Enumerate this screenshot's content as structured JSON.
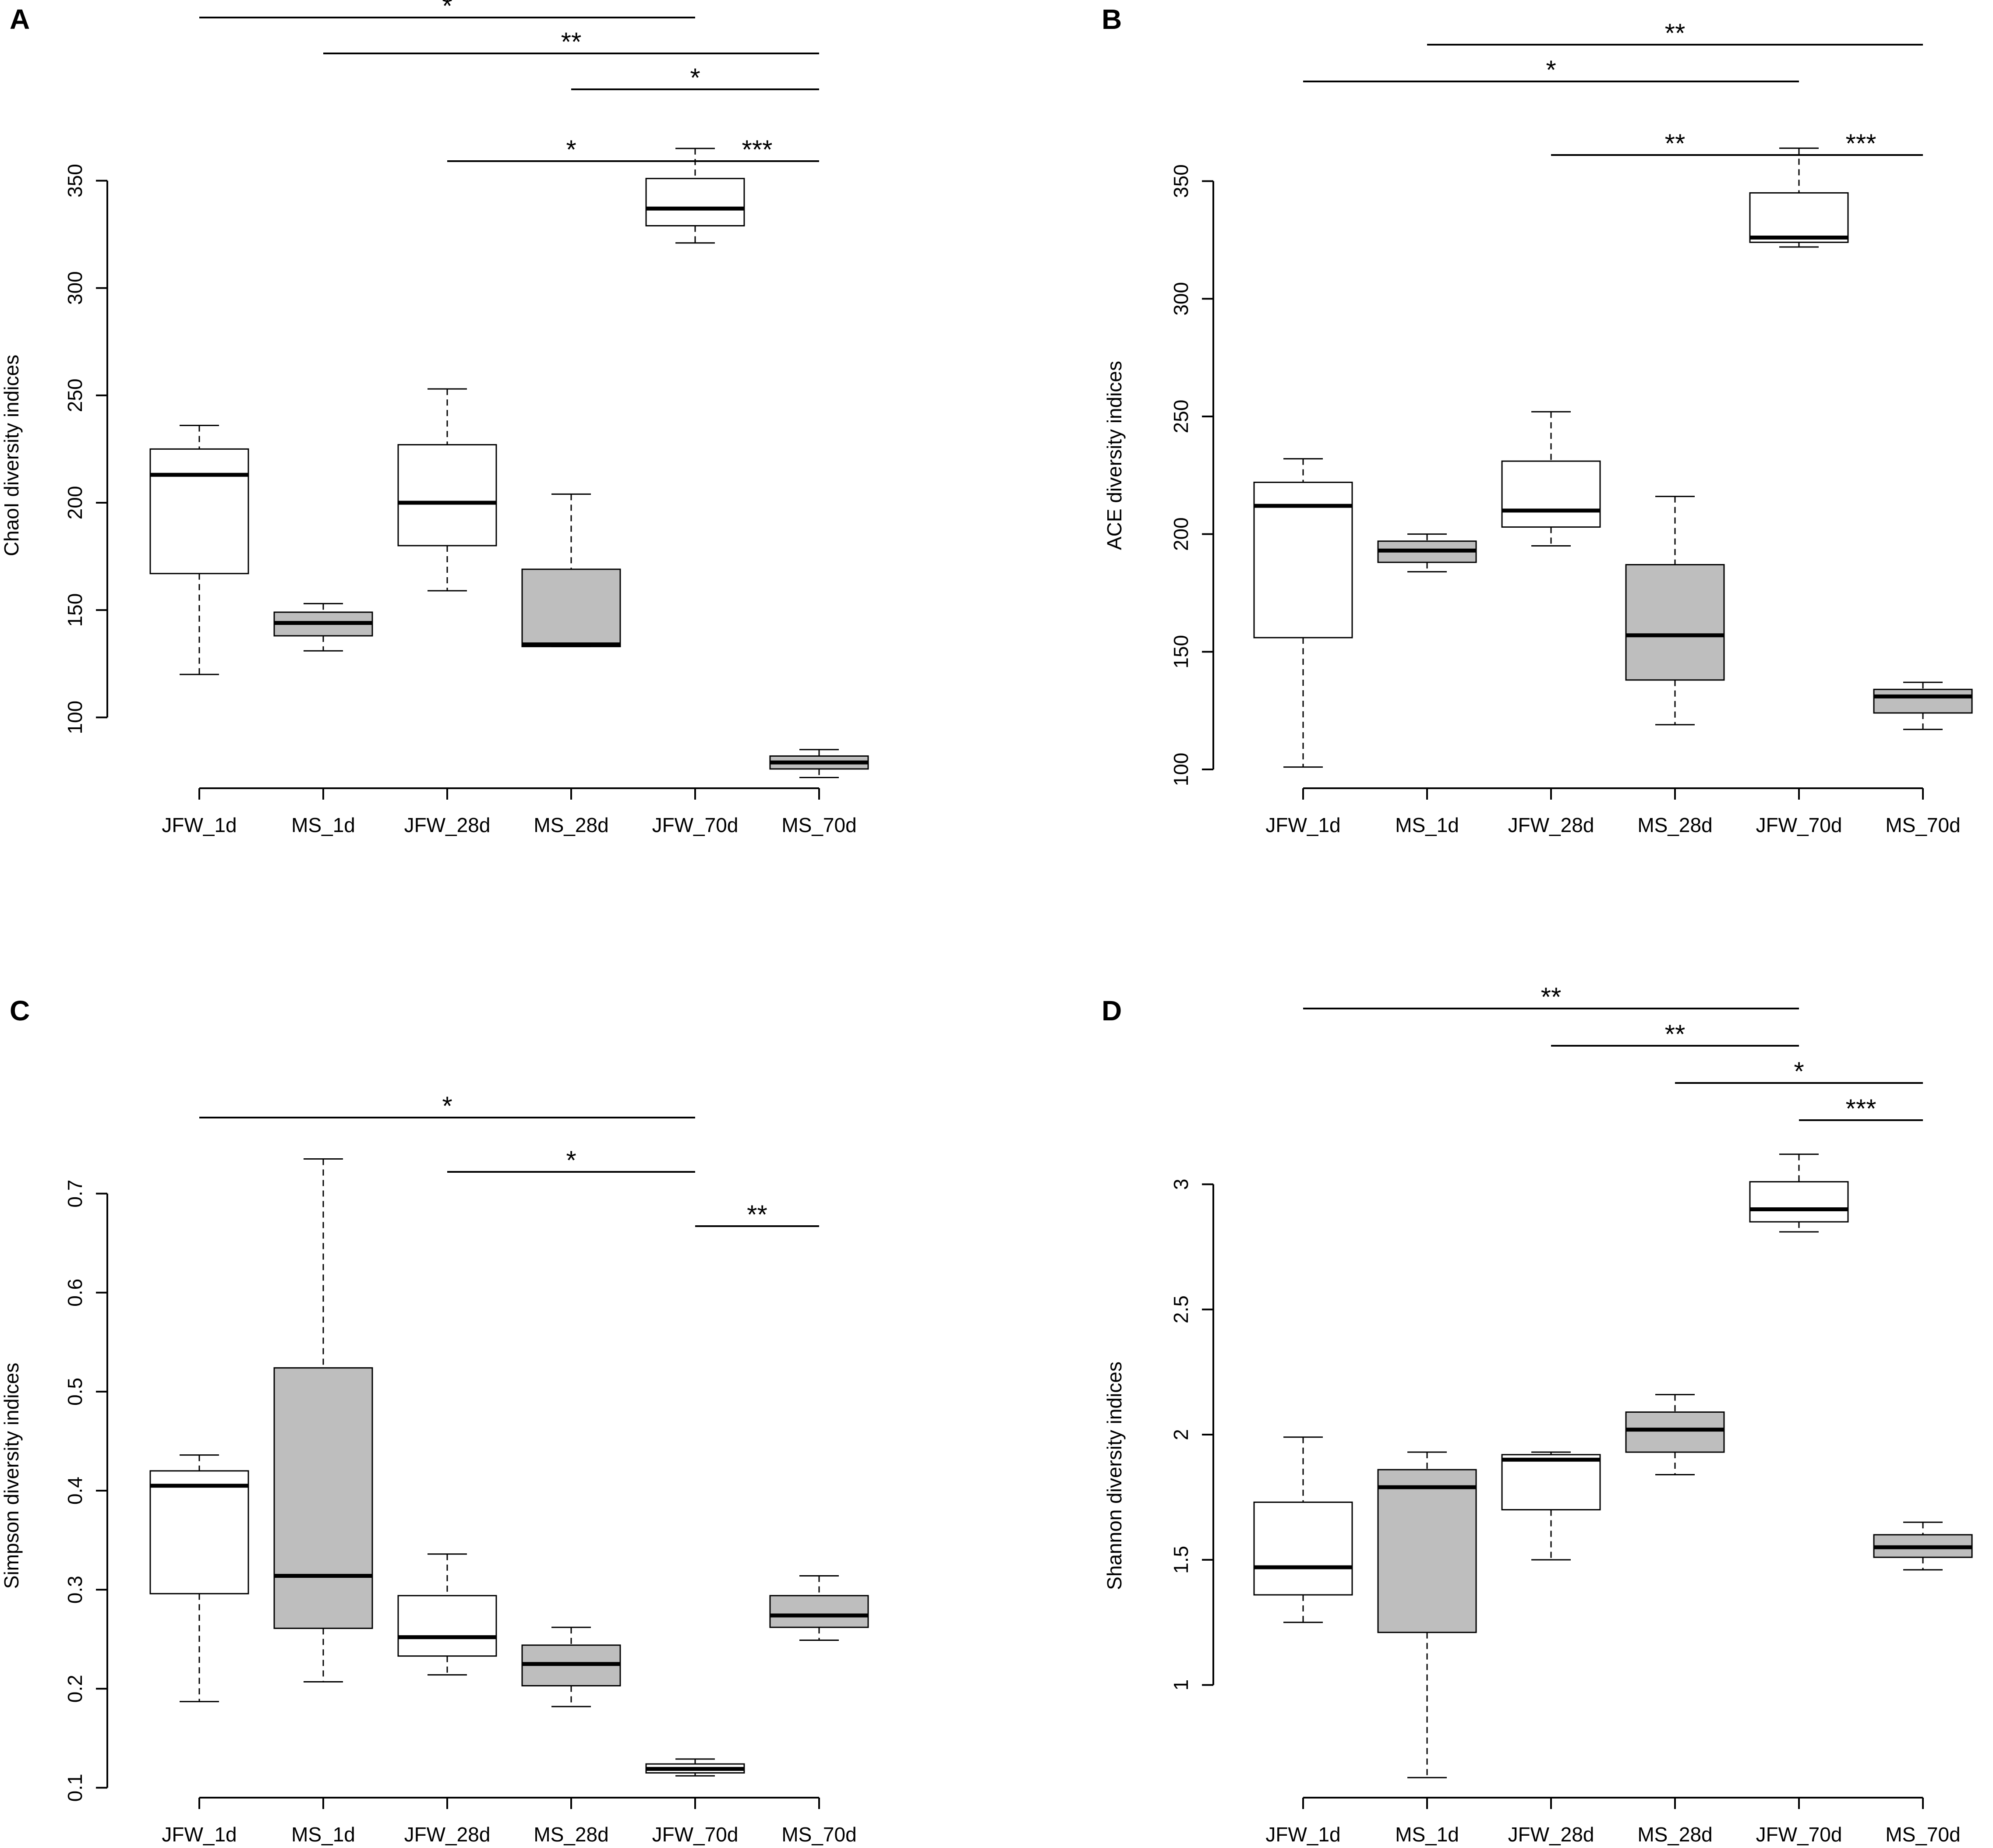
{
  "chart_data": [
    {
      "panel": "A",
      "type": "box",
      "ylabel": "ChaoI diversity indices",
      "ylim": [
        67,
        375
      ],
      "yticks": [
        100,
        150,
        200,
        250,
        300,
        350
      ],
      "categories": [
        "JFW_1d",
        "MS_1d",
        "JFW_28d",
        "MS_28d",
        "JFW_70d",
        "MS_70d"
      ],
      "fills": [
        "#ffffff",
        "#bebebe",
        "#ffffff",
        "#bebebe",
        "#ffffff",
        "#bebebe"
      ],
      "boxes": [
        {
          "min": 120,
          "q1": 167,
          "median": 213,
          "q3": 225,
          "max": 236
        },
        {
          "min": 131,
          "q1": 138,
          "median": 144,
          "q3": 149,
          "max": 153
        },
        {
          "min": 159,
          "q1": 180,
          "median": 200,
          "q3": 227,
          "max": 253
        },
        {
          "min": 133,
          "q1": 133,
          "median": 134,
          "q3": 169,
          "max": 204
        },
        {
          "min": 321,
          "q1": 329,
          "median": 337,
          "q3": 351,
          "max": 365
        },
        {
          "min": 72,
          "q1": 76,
          "median": 79,
          "q3": 82,
          "max": 85
        }
      ],
      "significance": [
        {
          "from": 0,
          "to": 4,
          "label": "*",
          "level": 5
        },
        {
          "from": 1,
          "to": 5,
          "label": "**",
          "level": 4
        },
        {
          "from": 3,
          "to": 5,
          "label": "*",
          "level": 3
        },
        {
          "from": 2,
          "to": 4,
          "label": "*",
          "level": 1
        },
        {
          "from": 4,
          "to": 5,
          "label": "***",
          "level": 1
        }
      ]
    },
    {
      "panel": "B",
      "type": "box",
      "ylabel": "ACE diversity indices",
      "ylim": [
        92,
        373
      ],
      "yticks": [
        100,
        150,
        200,
        250,
        300,
        350
      ],
      "categories": [
        "JFW_1d",
        "MS_1d",
        "JFW_28d",
        "MS_28d",
        "JFW_70d",
        "MS_70d"
      ],
      "fills": [
        "#ffffff",
        "#bebebe",
        "#ffffff",
        "#bebebe",
        "#ffffff",
        "#bebebe"
      ],
      "boxes": [
        {
          "min": 101,
          "q1": 156,
          "median": 212,
          "q3": 222,
          "max": 232
        },
        {
          "min": 184,
          "q1": 188,
          "median": 193,
          "q3": 197,
          "max": 200
        },
        {
          "min": 195,
          "q1": 203,
          "median": 210,
          "q3": 231,
          "max": 252
        },
        {
          "min": 119,
          "q1": 138,
          "median": 157,
          "q3": 187,
          "max": 216
        },
        {
          "min": 322,
          "q1": 324,
          "median": 326,
          "q3": 345,
          "max": 364
        },
        {
          "min": 117,
          "q1": 124,
          "median": 131,
          "q3": 134,
          "max": 137
        }
      ],
      "significance": [
        {
          "from": 1,
          "to": 5,
          "label": "**",
          "level": 4
        },
        {
          "from": 0,
          "to": 4,
          "label": "*",
          "level": 3
        },
        {
          "from": 2,
          "to": 4,
          "label": "**",
          "level": 1
        },
        {
          "from": 4,
          "to": 5,
          "label": "***",
          "level": 1
        }
      ]
    },
    {
      "panel": "C",
      "type": "box",
      "ylabel": "Simpson diversity indices",
      "ylim": [
        0.09,
        0.76
      ],
      "yticks": [
        0.1,
        0.2,
        0.3,
        0.4,
        0.5,
        0.6,
        0.7
      ],
      "categories": [
        "JFW_1d",
        "MS_1d",
        "JFW_28d",
        "MS_28d",
        "JFW_70d",
        "MS_70d"
      ],
      "fills": [
        "#ffffff",
        "#bebebe",
        "#ffffff",
        "#bebebe",
        "#ffffff",
        "#bebebe"
      ],
      "boxes": [
        {
          "min": 0.187,
          "q1": 0.296,
          "median": 0.405,
          "q3": 0.42,
          "max": 0.436
        },
        {
          "min": 0.207,
          "q1": 0.261,
          "median": 0.314,
          "q3": 0.524,
          "max": 0.735
        },
        {
          "min": 0.214,
          "q1": 0.233,
          "median": 0.252,
          "q3": 0.294,
          "max": 0.336
        },
        {
          "min": 0.182,
          "q1": 0.203,
          "median": 0.225,
          "q3": 0.244,
          "max": 0.262
        },
        {
          "min": 0.112,
          "q1": 0.115,
          "median": 0.119,
          "q3": 0.124,
          "max": 0.129
        },
        {
          "min": 0.249,
          "q1": 0.262,
          "median": 0.274,
          "q3": 0.294,
          "max": 0.314
        }
      ],
      "significance": [
        {
          "from": 0,
          "to": 4,
          "label": "*",
          "level": 3
        },
        {
          "from": 2,
          "to": 4,
          "label": "*",
          "level": 2
        },
        {
          "from": 4,
          "to": 5,
          "label": "**",
          "level": 1
        }
      ]
    },
    {
      "panel": "D",
      "type": "box",
      "ylabel": "Shannon diversity indices",
      "ylim": [
        0.55,
        3.2
      ],
      "yticks": [
        1.0,
        1.5,
        2.0,
        2.5,
        3.0
      ],
      "categories": [
        "JFW_1d",
        "MS_1d",
        "JFW_28d",
        "MS_28d",
        "JFW_70d",
        "MS_70d"
      ],
      "fills": [
        "#ffffff",
        "#bebebe",
        "#ffffff",
        "#bebebe",
        "#ffffff",
        "#bebebe"
      ],
      "boxes": [
        {
          "min": 1.25,
          "q1": 1.36,
          "median": 1.47,
          "q3": 1.73,
          "max": 1.99
        },
        {
          "min": 0.63,
          "q1": 1.21,
          "median": 1.79,
          "q3": 1.86,
          "max": 1.93
        },
        {
          "min": 1.5,
          "q1": 1.7,
          "median": 1.9,
          "q3": 1.92,
          "max": 1.93
        },
        {
          "min": 1.84,
          "q1": 1.93,
          "median": 2.02,
          "q3": 2.09,
          "max": 2.16
        },
        {
          "min": 2.81,
          "q1": 2.85,
          "median": 2.9,
          "q3": 3.01,
          "max": 3.12
        },
        {
          "min": 1.46,
          "q1": 1.51,
          "median": 1.55,
          "q3": 1.6,
          "max": 1.65
        }
      ],
      "significance": [
        {
          "from": 0,
          "to": 4,
          "label": "**",
          "level": 4
        },
        {
          "from": 2,
          "to": 4,
          "label": "**",
          "level": 3
        },
        {
          "from": 3,
          "to": 5,
          "label": "*",
          "level": 2
        },
        {
          "from": 4,
          "to": 5,
          "label": "***",
          "level": 1
        }
      ]
    }
  ]
}
